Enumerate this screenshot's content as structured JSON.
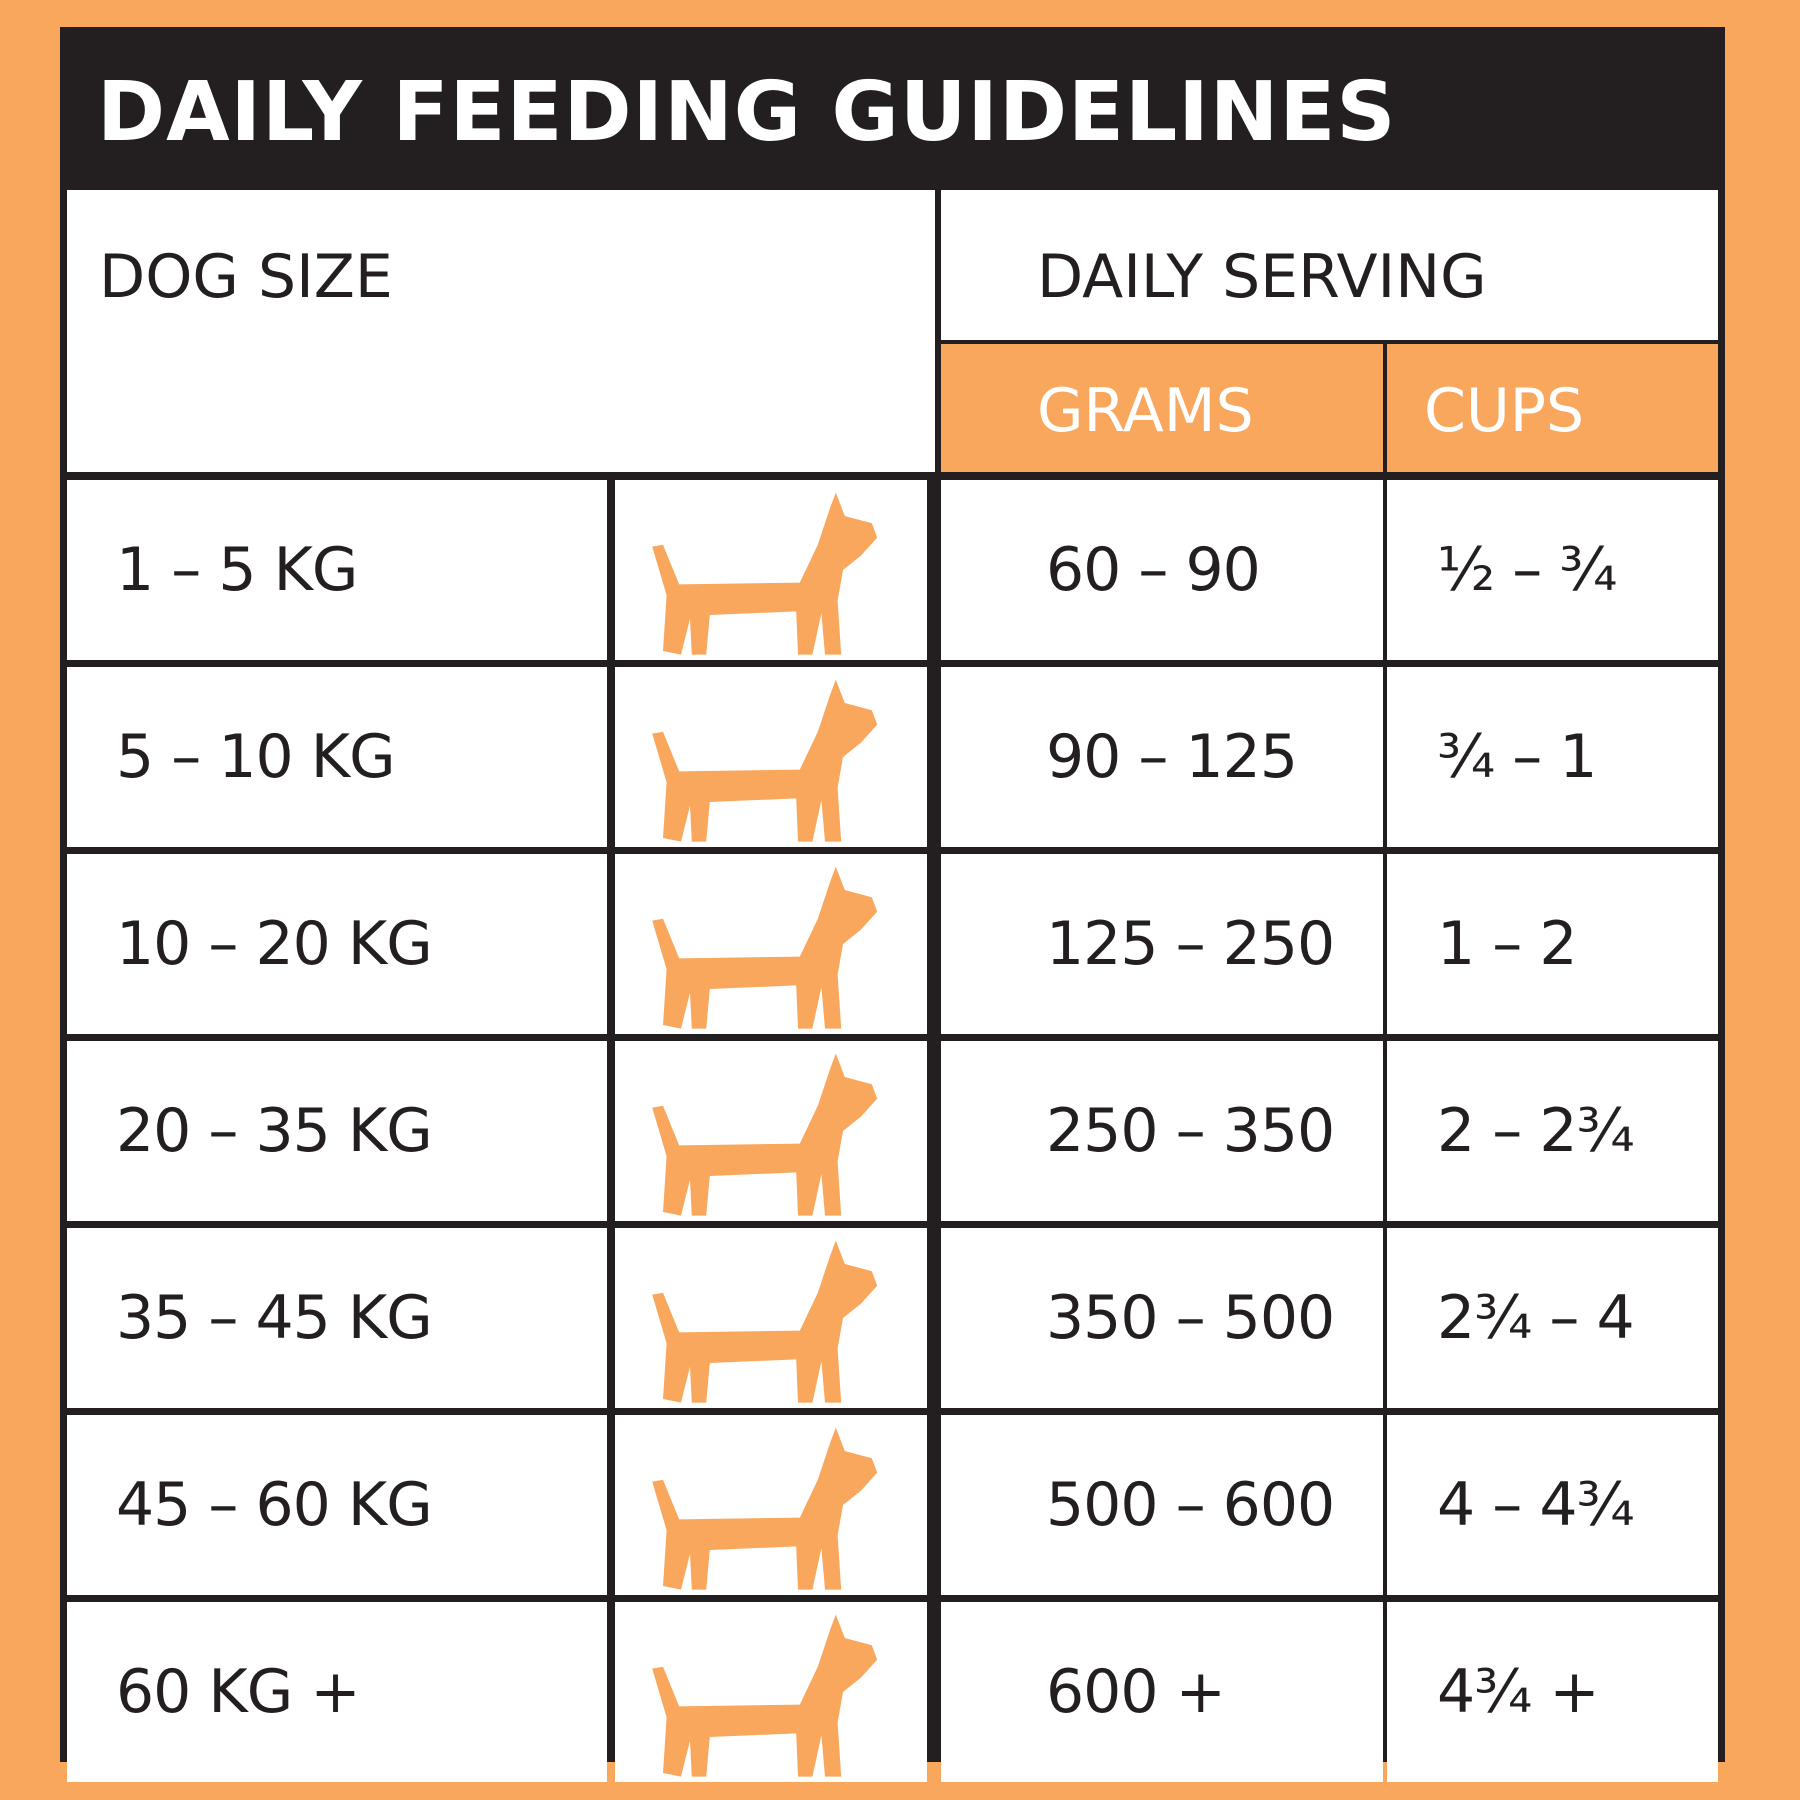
{
  "title": "DAILY FEEDING GUIDELINES",
  "header": {
    "dog_size": "DOG SIZE",
    "daily_serving": "DAILY SERVING",
    "grams": "GRAMS",
    "cups": "CUPS"
  },
  "rows": [
    {
      "size": "1 – 5 KG",
      "grams": "60 – 90",
      "cups": "½ – ¾",
      "icon": "toy-dog-icon"
    },
    {
      "size": "5 – 10 KG",
      "grams": "90 – 125",
      "cups": "¾ – 1",
      "icon": "fluffy-dog-icon"
    },
    {
      "size": "10 – 20 KG",
      "grams": "125 – 250",
      "cups": "1 – 2",
      "icon": "beagle-dog-icon"
    },
    {
      "size": "20 – 35 KG",
      "grams": "250 – 350",
      "cups": "2 – 2¾",
      "icon": "bull-terrier-dog-icon"
    },
    {
      "size": "35 – 45 KG",
      "grams": "350 – 500",
      "cups": "2¾ – 4",
      "icon": "retriever-dog-icon"
    },
    {
      "size": "45 – 60 KG",
      "grams": "500 – 600",
      "cups": "4 – 4¾",
      "icon": "husky-dog-icon"
    },
    {
      "size": "60 KG +",
      "grams": "600 +",
      "cups": "4¾ +",
      "icon": "great-dane-dog-icon"
    }
  ],
  "colors": {
    "accent": "#F9A75D",
    "dark": "#231F20",
    "white": "#FFFFFF"
  }
}
